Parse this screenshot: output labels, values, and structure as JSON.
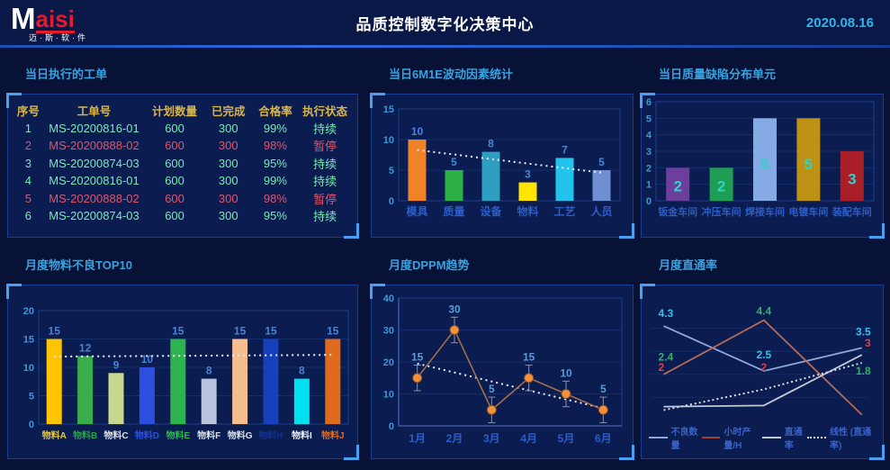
{
  "header": {
    "logo_m": "M",
    "logo_rest": "aisi",
    "logo_sub": "迈·斯·软·件",
    "title": "品质控制数字化决策中心",
    "date": "2020.08.16"
  },
  "colors": {
    "accent_cyan": "#38a2e0",
    "date_cyan": "#2fb5ea",
    "table_header_gold": "#d9b64b",
    "row_normal_green": "#7de8b8",
    "row_alert_red": "#e2556a",
    "tick_blue": "#3f96d8",
    "value_blue": "#4a85d4",
    "category_blue": "#2b5ec8",
    "trend_white": "#e9eef8"
  },
  "panels": {
    "work_orders": {
      "title": "当日执行的工单",
      "columns": [
        "序号",
        "工单号",
        "计划数量",
        "已完成",
        "合格率",
        "执行状态"
      ],
      "rows": [
        {
          "no": "1",
          "order": "MS-20200816-01",
          "plan": "600",
          "done": "300",
          "rate": "99%",
          "status": "持续",
          "alert": false
        },
        {
          "no": "2",
          "order": "MS-20200888-02",
          "plan": "600",
          "done": "300",
          "rate": "98%",
          "status": "暂停",
          "alert": true
        },
        {
          "no": "3",
          "order": "MS-20200874-03",
          "plan": "600",
          "done": "300",
          "rate": "95%",
          "status": "持续",
          "alert": false
        },
        {
          "no": "4",
          "order": "MS-20200816-01",
          "plan": "600",
          "done": "300",
          "rate": "99%",
          "status": "持续",
          "alert": false
        },
        {
          "no": "5",
          "order": "MS-20200888-02",
          "plan": "600",
          "done": "300",
          "rate": "98%",
          "status": "暂停",
          "alert": true
        },
        {
          "no": "6",
          "order": "MS-20200874-03",
          "plan": "600",
          "done": "300",
          "rate": "95%",
          "status": "持续",
          "alert": false
        }
      ]
    }
  },
  "chart_data": [
    {
      "id": "m6e1",
      "type": "bar",
      "title": "当日6M1E波动因素统计",
      "categories": [
        "模具",
        "质量",
        "设备",
        "物料",
        "工艺",
        "人员"
      ],
      "values": [
        10,
        5,
        8,
        3,
        7,
        5
      ],
      "bar_colors": [
        "#f08228",
        "#2cb045",
        "#2f9ec0",
        "#ffe400",
        "#22c4ee",
        "#6f8fd2"
      ],
      "yticks": [
        0,
        5,
        10,
        15
      ],
      "ylim": [
        0,
        15
      ],
      "trend": [
        8.3,
        4.6
      ],
      "grid": true,
      "xlabel": "",
      "ylabel": ""
    },
    {
      "id": "defects",
      "type": "bar",
      "title": "当日质量缺陷分布单元",
      "categories": [
        "钣金车间",
        "冲压车间",
        "焊接车间",
        "电镀车间",
        "装配车间"
      ],
      "values": [
        2,
        2,
        5,
        5,
        3
      ],
      "bar_colors": [
        "#6c3f9c",
        "#1e9e52",
        "#86abe4",
        "#bd9114",
        "#a81f2a"
      ],
      "value_label_color": "#2fd3c8",
      "value_label_inside": true,
      "yticks": [
        0,
        1,
        2,
        3,
        4,
        5,
        6
      ],
      "ylim": [
        0,
        6
      ],
      "grid": true,
      "xlabel": "",
      "ylabel": ""
    },
    {
      "id": "top10",
      "type": "bar",
      "title": "月度物料不良TOP10",
      "categories": [
        "物料A",
        "物料B",
        "物料C",
        "物料D",
        "物料E",
        "物料F",
        "物料G",
        "物料H",
        "物料I",
        "物料J"
      ],
      "values": [
        15,
        12,
        9,
        10,
        15,
        8,
        15,
        15,
        8,
        15
      ],
      "bar_colors": [
        "#ffc400",
        "#3aac4a",
        "#c8d88e",
        "#2b50dd",
        "#2eb44e",
        "#b9c3dd",
        "#f6bd8e",
        "#1741bb",
        "#00e0f0",
        "#e06a1e"
      ],
      "label_colors": [
        "#e8c83f",
        "#2d9e4a",
        "#d8e0ea",
        "#2b50dd",
        "#2eb44e",
        "#d8e0ea",
        "#d8e0ea",
        "#16328a",
        "#e6f0ff",
        "#e06a1e"
      ],
      "yticks": [
        0,
        5,
        10,
        15,
        20
      ],
      "ylim": [
        0,
        20
      ],
      "trend": [
        11.9,
        12.2
      ],
      "grid": true,
      "xlabel": "",
      "ylabel": ""
    },
    {
      "id": "dppm",
      "type": "line",
      "title": "月度DPPM趋势",
      "categories": [
        "1月",
        "2月",
        "3月",
        "4月",
        "5月",
        "6月"
      ],
      "values": [
        15,
        30,
        5,
        15,
        10,
        5
      ],
      "error": 4,
      "line_color": "#a8714c",
      "marker_color": "#f59138",
      "error_color": "#8b93a8",
      "yticks": [
        0,
        10,
        20,
        30,
        40
      ],
      "ylim": [
        0,
        40
      ],
      "trend": [
        19.5,
        5.5
      ],
      "grid": true,
      "xlabel": "",
      "ylabel": ""
    },
    {
      "id": "fpy",
      "type": "multi-line",
      "title": "月度直通率",
      "ylim": [
        0,
        5
      ],
      "gridlines": [
        1,
        2,
        3,
        4
      ],
      "series": [
        {
          "name": "不良数量",
          "color": "#8fa8dc",
          "dotted": false,
          "values": [
            4.3,
            2.5,
            3.5
          ],
          "points": [
            4.1,
            2.15,
            3.15
          ]
        },
        {
          "name": "小时产量/H",
          "color": "#b86a58",
          "dotted": false,
          "values": [
            2,
            2,
            3
          ],
          "points": [
            2.0,
            4.35,
            0.25
          ]
        },
        {
          "name": "直通率",
          "color": "#c4cad6",
          "dotted": false,
          "values": [
            2.4,
            4.4,
            1.8
          ],
          "points": [
            0.6,
            0.65,
            2.85
          ]
        },
        {
          "name": "线性 (直通率)",
          "color": "#d8dce6",
          "dotted": true,
          "values": [],
          "points": [
            0.45,
            1.35,
            2.5
          ]
        }
      ],
      "point_labels": [
        {
          "col": 0,
          "text": "4.3",
          "y": 4.3,
          "color": "#39c0e8"
        },
        {
          "col": 0,
          "text": "2.4",
          "y": 2.4,
          "color": "#35b06a"
        },
        {
          "col": 0,
          "text": "2",
          "y": 1.95,
          "color": "#d8414f"
        },
        {
          "col": 1,
          "text": "4.4",
          "y": 4.4,
          "color": "#35b06a"
        },
        {
          "col": 1,
          "text": "2.5",
          "y": 2.5,
          "color": "#39c0e8"
        },
        {
          "col": 1,
          "text": "2",
          "y": 1.95,
          "color": "#d8414f"
        },
        {
          "col": 2,
          "text": "3.5",
          "y": 3.5,
          "color": "#39c0e8"
        },
        {
          "col": 2,
          "text": "3",
          "y": 3.0,
          "color": "#d8414f"
        },
        {
          "col": 2,
          "text": "1.8",
          "y": 1.8,
          "color": "#35b06a"
        }
      ],
      "legend": [
        {
          "label": "不良数量",
          "color": "#8fa8dc",
          "dotted": false
        },
        {
          "label": "小时产量/H",
          "color": "#9e4436",
          "dotted": false
        },
        {
          "label": "直通率",
          "color": "#c4cad6",
          "dotted": false
        },
        {
          "label": "线性 (直通率)",
          "color": "#d8dce6",
          "dotted": true
        }
      ],
      "legend_position": "bottom"
    }
  ]
}
